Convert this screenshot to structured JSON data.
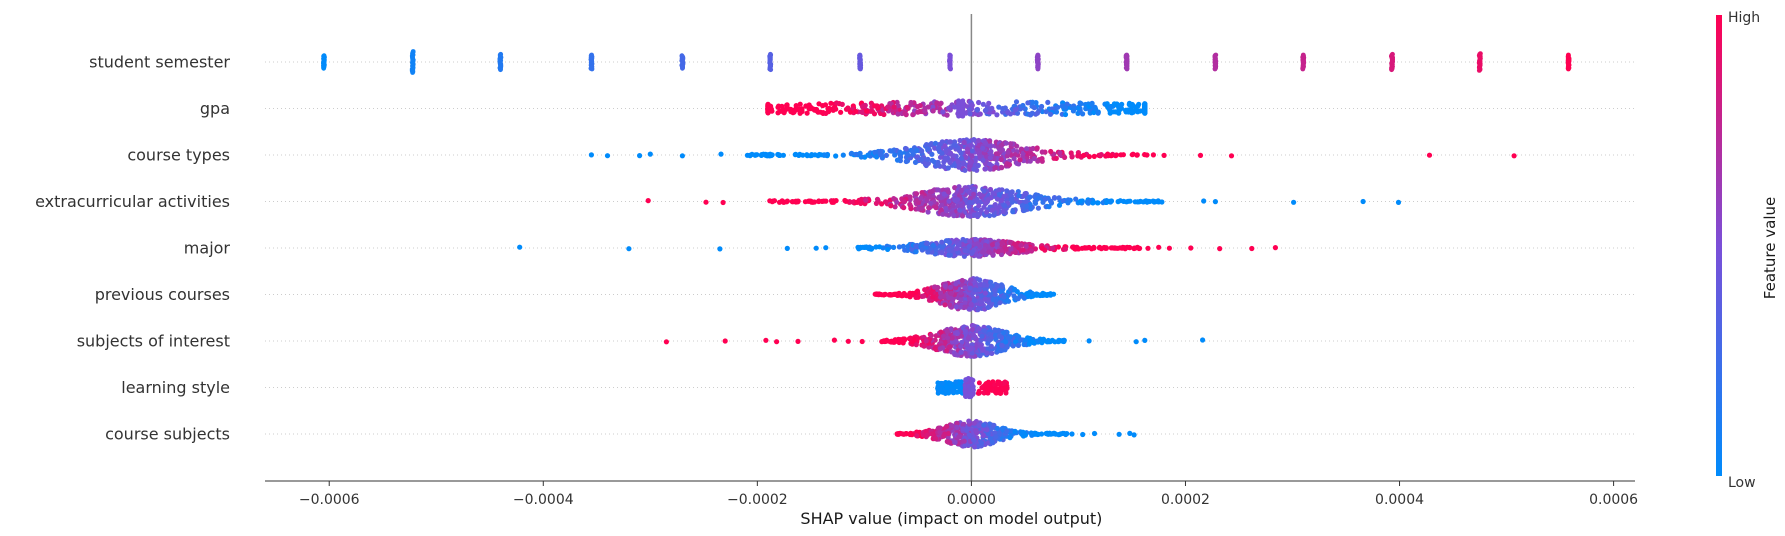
{
  "chart_data": {
    "type": "scatter",
    "subtype": "shap-beeswarm",
    "xlabel": "SHAP value (impact on model output)",
    "xlim": [
      -0.00066,
      0.00062
    ],
    "xticks": [
      -0.0006,
      -0.0004,
      -0.0002,
      0.0,
      0.0002,
      0.0004,
      0.0006
    ],
    "xtick_labels": [
      "−0.0006",
      "−0.0004",
      "−0.0002",
      "0.0000",
      "0.0002",
      "0.0004",
      "0.0006"
    ],
    "grid": "dotted horizontal per feature",
    "colorbar": {
      "title": "Feature value",
      "high_label": "High",
      "low_label": "Low",
      "low_color": "#008bfb",
      "high_color": "#ff0052"
    },
    "features": [
      {
        "name": "student semester",
        "groups": [
          {
            "x": -0.000605,
            "v": 0.0,
            "spread": 0.45
          },
          {
            "x": -0.000522,
            "v": 0.07,
            "spread": 0.75
          },
          {
            "x": -0.00044,
            "v": 0.14,
            "spread": 0.55
          },
          {
            "x": -0.000355,
            "v": 0.21,
            "spread": 0.5
          },
          {
            "x": -0.00027,
            "v": 0.28,
            "spread": 0.45
          },
          {
            "x": -0.000188,
            "v": 0.35,
            "spread": 0.55
          },
          {
            "x": -0.000104,
            "v": 0.42,
            "spread": 0.5
          },
          {
            "x": -2e-05,
            "v": 0.5,
            "spread": 0.5
          },
          {
            "x": 6.2e-05,
            "v": 0.57,
            "spread": 0.5
          },
          {
            "x": 0.000145,
            "v": 0.64,
            "spread": 0.5
          },
          {
            "x": 0.000228,
            "v": 0.71,
            "spread": 0.5
          },
          {
            "x": 0.00031,
            "v": 0.78,
            "spread": 0.5
          },
          {
            "x": 0.000393,
            "v": 0.85,
            "spread": 0.55
          },
          {
            "x": 0.000475,
            "v": 0.92,
            "spread": 0.6
          },
          {
            "x": 0.000558,
            "v": 1.0,
            "spread": 0.5
          }
        ]
      },
      {
        "name": "gpa",
        "dense": {
          "min": -0.00019,
          "max": 0.000162,
          "center": 0.0,
          "peak": 0.35,
          "width": 0.0004,
          "lowOnRight": true,
          "count": 520
        },
        "extra": [
          {
            "x": -1.2e-05,
            "v": 0.5,
            "spread": 0.7
          },
          {
            "x": -8e-06,
            "v": 0.5,
            "spread": 0.7
          }
        ]
      },
      {
        "name": "course types",
        "dense": {
          "min": -0.00021,
          "max": 0.000165,
          "center": 0.0,
          "peak": 0.9,
          "width": 6e-05,
          "lowOnRight": false,
          "count": 520
        },
        "outliers_low": [
          -0.000355,
          -0.00034,
          -0.00031,
          -0.0003,
          -0.00027,
          -0.000234,
          -0.000205,
          -0.000202,
          -0.00018
        ],
        "outliers_high": [
          0.000155,
          0.00017,
          0.00018,
          0.000214,
          0.000243,
          0.000428,
          0.000507
        ]
      },
      {
        "name": "extracurricular activities",
        "dense": {
          "min": -0.00019,
          "max": 0.000178,
          "center": 0.0,
          "peak": 0.9,
          "width": 6e-05,
          "lowOnRight": true,
          "count": 540
        },
        "outliers_low": [
          -0.000302,
          -0.000248,
          -0.000232,
          -0.000186,
          -0.000175
        ],
        "outliers_high": [
          0.000165,
          0.000178,
          0.000217,
          0.000228,
          0.000301,
          0.000366,
          0.000399
        ]
      },
      {
        "name": "major",
        "dense": {
          "min": -0.000106,
          "max": 0.000158,
          "center": 0.0,
          "peak": 0.45,
          "width": 5e-05,
          "lowOnRight": false,
          "count": 440
        },
        "outliers_low": [
          -0.000422,
          -0.00032,
          -0.000235,
          -0.000172,
          -0.000145,
          -0.000136
        ],
        "outliers_high": [
          0.000165,
          0.000175,
          0.000185,
          0.000205,
          0.000232,
          0.000262,
          0.000284
        ]
      },
      {
        "name": "previous courses",
        "dense": {
          "min": -9e-05,
          "max": 7.8e-05,
          "center": 0.0,
          "peak": 0.95,
          "width": 3.5e-05,
          "lowOnRight": true,
          "count": 460
        },
        "outliers_low": [],
        "outliers_high": []
      },
      {
        "name": "subjects of interest",
        "dense": {
          "min": -8.5e-05,
          "max": 8.8e-05,
          "center": 0.0,
          "peak": 0.9,
          "width": 4e-05,
          "lowOnRight": true,
          "count": 460
        },
        "outliers_low": [
          -0.000285,
          -0.00023,
          -0.000192,
          -0.000182,
          -0.000162,
          -0.000128,
          -0.000115,
          -0.000102
        ],
        "outliers_high": [
          0.00011,
          0.000154,
          0.000162,
          0.000216
        ]
      },
      {
        "name": "learning style",
        "groups_band": [
          {
            "min": -3.2e-05,
            "max": -8e-06,
            "v": 0.0,
            "spread": 0.55
          },
          {
            "min": -6e-06,
            "max": 2e-06,
            "v": 0.5,
            "spread": 0.85
          },
          {
            "min": 6e-06,
            "max": 3.5e-05,
            "v": 1.0,
            "spread": 0.55
          }
        ]
      },
      {
        "name": "course subjects",
        "dense": {
          "min": -7e-05,
          "max": 9e-05,
          "center": 0.0,
          "peak": 0.75,
          "width": 3e-05,
          "lowOnRight": true,
          "count": 380
        },
        "outliers_low": [],
        "outliers_high": [
          9.4e-05,
          0.000104,
          0.000115,
          0.000138,
          0.000148,
          0.000152
        ]
      }
    ]
  }
}
